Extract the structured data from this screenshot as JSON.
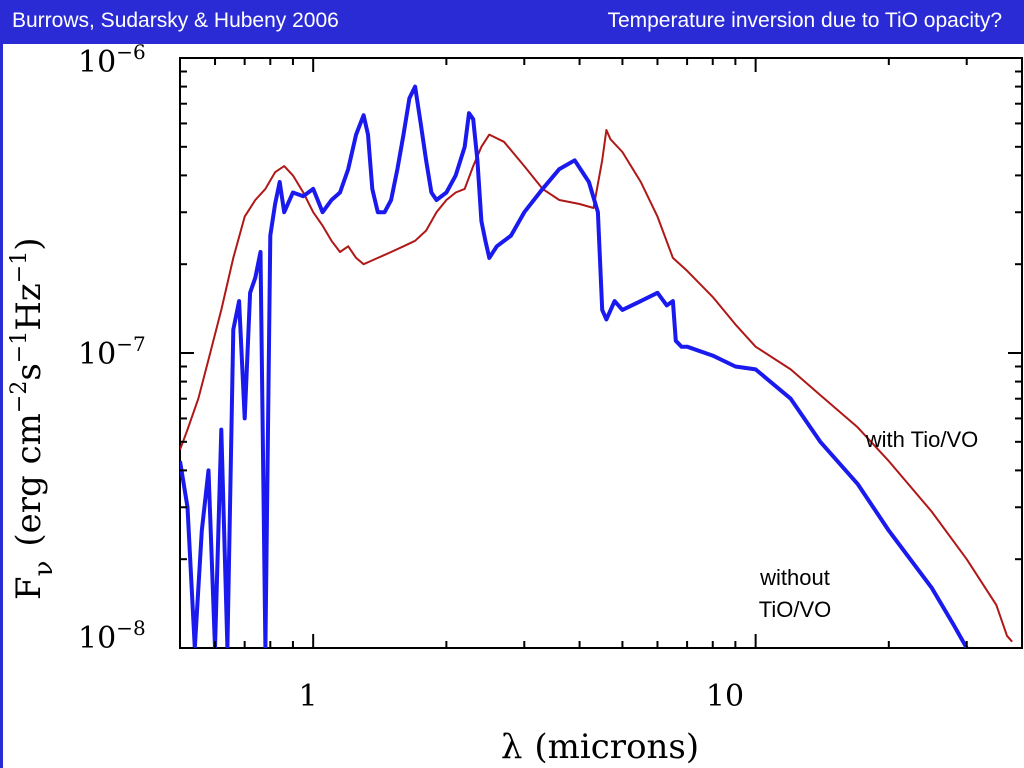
{
  "header": {
    "left_text": "Burrows, Sudarsky & Hubeny 2006",
    "right_text": "Temperature inversion due to TiO opacity?"
  },
  "colors": {
    "header_bg": "#2b2bd6",
    "series_with": "#b01818",
    "series_without": "#1a1aee"
  },
  "chart_data": {
    "type": "line",
    "title": "",
    "xlabel": "λ (microns)",
    "ylabel": "F_ν (erg cm^-2 s^-1 Hz^-1)",
    "x_scale": "log",
    "y_scale": "log",
    "xlim": [
      0.5,
      40
    ],
    "ylim": [
      1e-08,
      1e-06
    ],
    "grid": false,
    "x_ticks": [
      {
        "value": 1,
        "label": "1"
      },
      {
        "value": 10,
        "label": "10"
      }
    ],
    "y_ticks": [
      {
        "value": 1e-08,
        "base": "10",
        "exp": "−8"
      },
      {
        "value": 1e-07,
        "base": "10",
        "exp": "−7"
      },
      {
        "value": 1e-06,
        "base": "10",
        "exp": "−6"
      }
    ],
    "ylabel_parts": {
      "f": "F",
      "nu": "ν",
      "open": "(erg cm",
      "e1": "−2",
      "s": "s",
      "e2": "−1",
      "hz": "Hz",
      "e3": "−1",
      "close": ")"
    },
    "xlabel_parts": {
      "lambda": "λ",
      "rest": "(microns)"
    },
    "series": [
      {
        "name": "with Tio/VO",
        "x": [
          0.5,
          0.52,
          0.55,
          0.58,
          0.62,
          0.66,
          0.7,
          0.74,
          0.78,
          0.82,
          0.86,
          0.9,
          0.95,
          1.0,
          1.05,
          1.1,
          1.15,
          1.2,
          1.25,
          1.3,
          1.35,
          1.4,
          1.5,
          1.6,
          1.7,
          1.8,
          1.9,
          2.0,
          2.1,
          2.2,
          2.3,
          2.4,
          2.5,
          2.7,
          3.0,
          3.3,
          3.6,
          4.0,
          4.3,
          4.5,
          4.6,
          4.7,
          5.0,
          5.5,
          6.0,
          6.5,
          7.0,
          8.0,
          9.0,
          10.0,
          12.0,
          14.0,
          17.0,
          20.0,
          25.0,
          30.0,
          35.0,
          37.0,
          38.0
        ],
        "values": [
          4.7e-08,
          5.5e-08,
          7e-08,
          9.5e-08,
          1.4e-07,
          2.1e-07,
          2.9e-07,
          3.3e-07,
          3.6e-07,
          4.1e-07,
          4.3e-07,
          4e-07,
          3.5e-07,
          3e-07,
          2.7e-07,
          2.4e-07,
          2.2e-07,
          2.3e-07,
          2.1e-07,
          2e-07,
          2.05e-07,
          2.1e-07,
          2.2e-07,
          2.3e-07,
          2.4e-07,
          2.6e-07,
          3e-07,
          3.3e-07,
          3.5e-07,
          3.6e-07,
          4.3e-07,
          5e-07,
          5.5e-07,
          5.2e-07,
          4.3e-07,
          3.6e-07,
          3.3e-07,
          3.2e-07,
          3.1e-07,
          4.5e-07,
          5.7e-07,
          5.3e-07,
          4.8e-07,
          3.8e-07,
          2.9e-07,
          2.1e-07,
          1.9e-07,
          1.55e-07,
          1.25e-07,
          1.05e-07,
          8.8e-08,
          7.2e-08,
          5.6e-08,
          4.3e-08,
          2.9e-08,
          2e-08,
          1.4e-08,
          1.1e-08,
          1.05e-08
        ]
      },
      {
        "name": "without TiO/VO",
        "x": [
          0.5,
          0.52,
          0.54,
          0.56,
          0.58,
          0.6,
          0.62,
          0.64,
          0.66,
          0.68,
          0.7,
          0.72,
          0.74,
          0.76,
          0.78,
          0.8,
          0.82,
          0.84,
          0.86,
          0.9,
          0.95,
          1.0,
          1.05,
          1.1,
          1.15,
          1.2,
          1.25,
          1.3,
          1.33,
          1.36,
          1.4,
          1.45,
          1.5,
          1.55,
          1.6,
          1.65,
          1.7,
          1.75,
          1.8,
          1.85,
          1.9,
          2.0,
          2.1,
          2.2,
          2.25,
          2.3,
          2.35,
          2.4,
          2.45,
          2.5,
          2.6,
          2.8,
          3.0,
          3.3,
          3.6,
          3.9,
          4.2,
          4.4,
          4.5,
          4.6,
          4.8,
          5.0,
          5.5,
          6.0,
          6.3,
          6.5,
          6.6,
          6.8,
          7.0,
          8.0,
          9.0,
          10.0,
          12.0,
          14.0,
          17.0,
          20.0,
          25.0,
          28.0,
          30.0
        ],
        "values": [
          4.3e-08,
          3e-08,
          1e-08,
          2.5e-08,
          4e-08,
          1e-08,
          5.5e-08,
          1e-08,
          1.2e-07,
          1.5e-07,
          6e-08,
          1.6e-07,
          1.8e-07,
          2.2e-07,
          1e-08,
          2.5e-07,
          3.2e-07,
          3.8e-07,
          3e-07,
          3.5e-07,
          3.4e-07,
          3.6e-07,
          3e-07,
          3.3e-07,
          3.5e-07,
          4.2e-07,
          5.5e-07,
          6.4e-07,
          5.5e-07,
          3.6e-07,
          3e-07,
          3e-07,
          3.3e-07,
          4.2e-07,
          5.5e-07,
          7.3e-07,
          8e-07,
          6e-07,
          4.5e-07,
          3.5e-07,
          3.3e-07,
          3.5e-07,
          4e-07,
          5e-07,
          6.5e-07,
          6.2e-07,
          4.5e-07,
          2.8e-07,
          2.4e-07,
          2.1e-07,
          2.3e-07,
          2.5e-07,
          3e-07,
          3.6e-07,
          4.2e-07,
          4.5e-07,
          3.8e-07,
          3e-07,
          1.4e-07,
          1.3e-07,
          1.5e-07,
          1.4e-07,
          1.5e-07,
          1.6e-07,
          1.45e-07,
          1.5e-07,
          1.1e-07,
          1.05e-07,
          1.05e-07,
          9.8e-08,
          9e-08,
          8.8e-08,
          7e-08,
          5e-08,
          3.6e-08,
          2.5e-08,
          1.6e-08,
          1.2e-08,
          1e-08
        ]
      }
    ],
    "annotations": [
      {
        "text": "with Tio/VO",
        "series": "with Tio/VO"
      },
      {
        "lines": [
          "without",
          "TiO/VO"
        ],
        "series": "without TiO/VO"
      }
    ]
  }
}
